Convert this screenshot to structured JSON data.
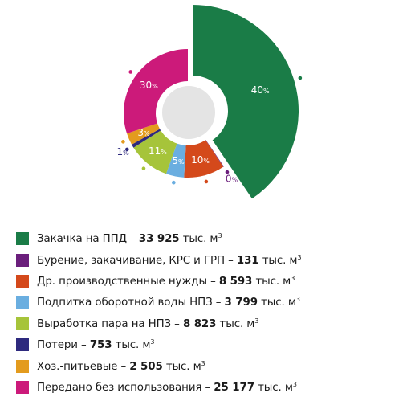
{
  "chart_data": {
    "type": "pie",
    "style": "donut with one exploded segment",
    "unit": "тыс. м³",
    "slices": [
      {
        "label": "Закачка на ППД",
        "value": 33925,
        "value_text": "33 925",
        "percent_label": "40",
        "color": "#1a7c47",
        "exploded": true
      },
      {
        "label": "Бурение, закачивание, КРС и ГРП",
        "value": 131,
        "value_text": "131",
        "percent_label": "0",
        "color": "#6b1f7c",
        "exploded": false
      },
      {
        "label": "Др. производственные нужды",
        "value": 8593,
        "value_text": "8 593",
        "percent_label": "10",
        "color": "#d4491b",
        "exploded": false
      },
      {
        "label": "Подпитка  оборотной воды НПЗ",
        "value": 3799,
        "value_text": "3 799",
        "percent_label": "5",
        "color": "#6aaee0",
        "exploded": false
      },
      {
        "label": "Выработка пара на НПЗ",
        "value": 8823,
        "value_text": "8 823",
        "percent_label": "11",
        "color": "#a6c43a",
        "exploded": false
      },
      {
        "label": "Потери",
        "value": 753,
        "value_text": "753",
        "percent_label": "1",
        "color": "#2e2a7e",
        "exploded": false
      },
      {
        "label": "Хоз.-питьевые",
        "value": 2505,
        "value_text": "2 505",
        "percent_label": "3",
        "color": "#e39b1e",
        "exploded": false
      },
      {
        "label": "Передано без использования",
        "value": 25177,
        "value_text": "25 177",
        "percent_label": "30",
        "color": "#cc1a7a",
        "exploded": false
      }
    ],
    "legend_position": "bottom-left",
    "percent_sign": "%",
    "legend_separator": " – ",
    "legend_unit_prefix": " тыс. м",
    "legend_unit_sup": "3"
  }
}
